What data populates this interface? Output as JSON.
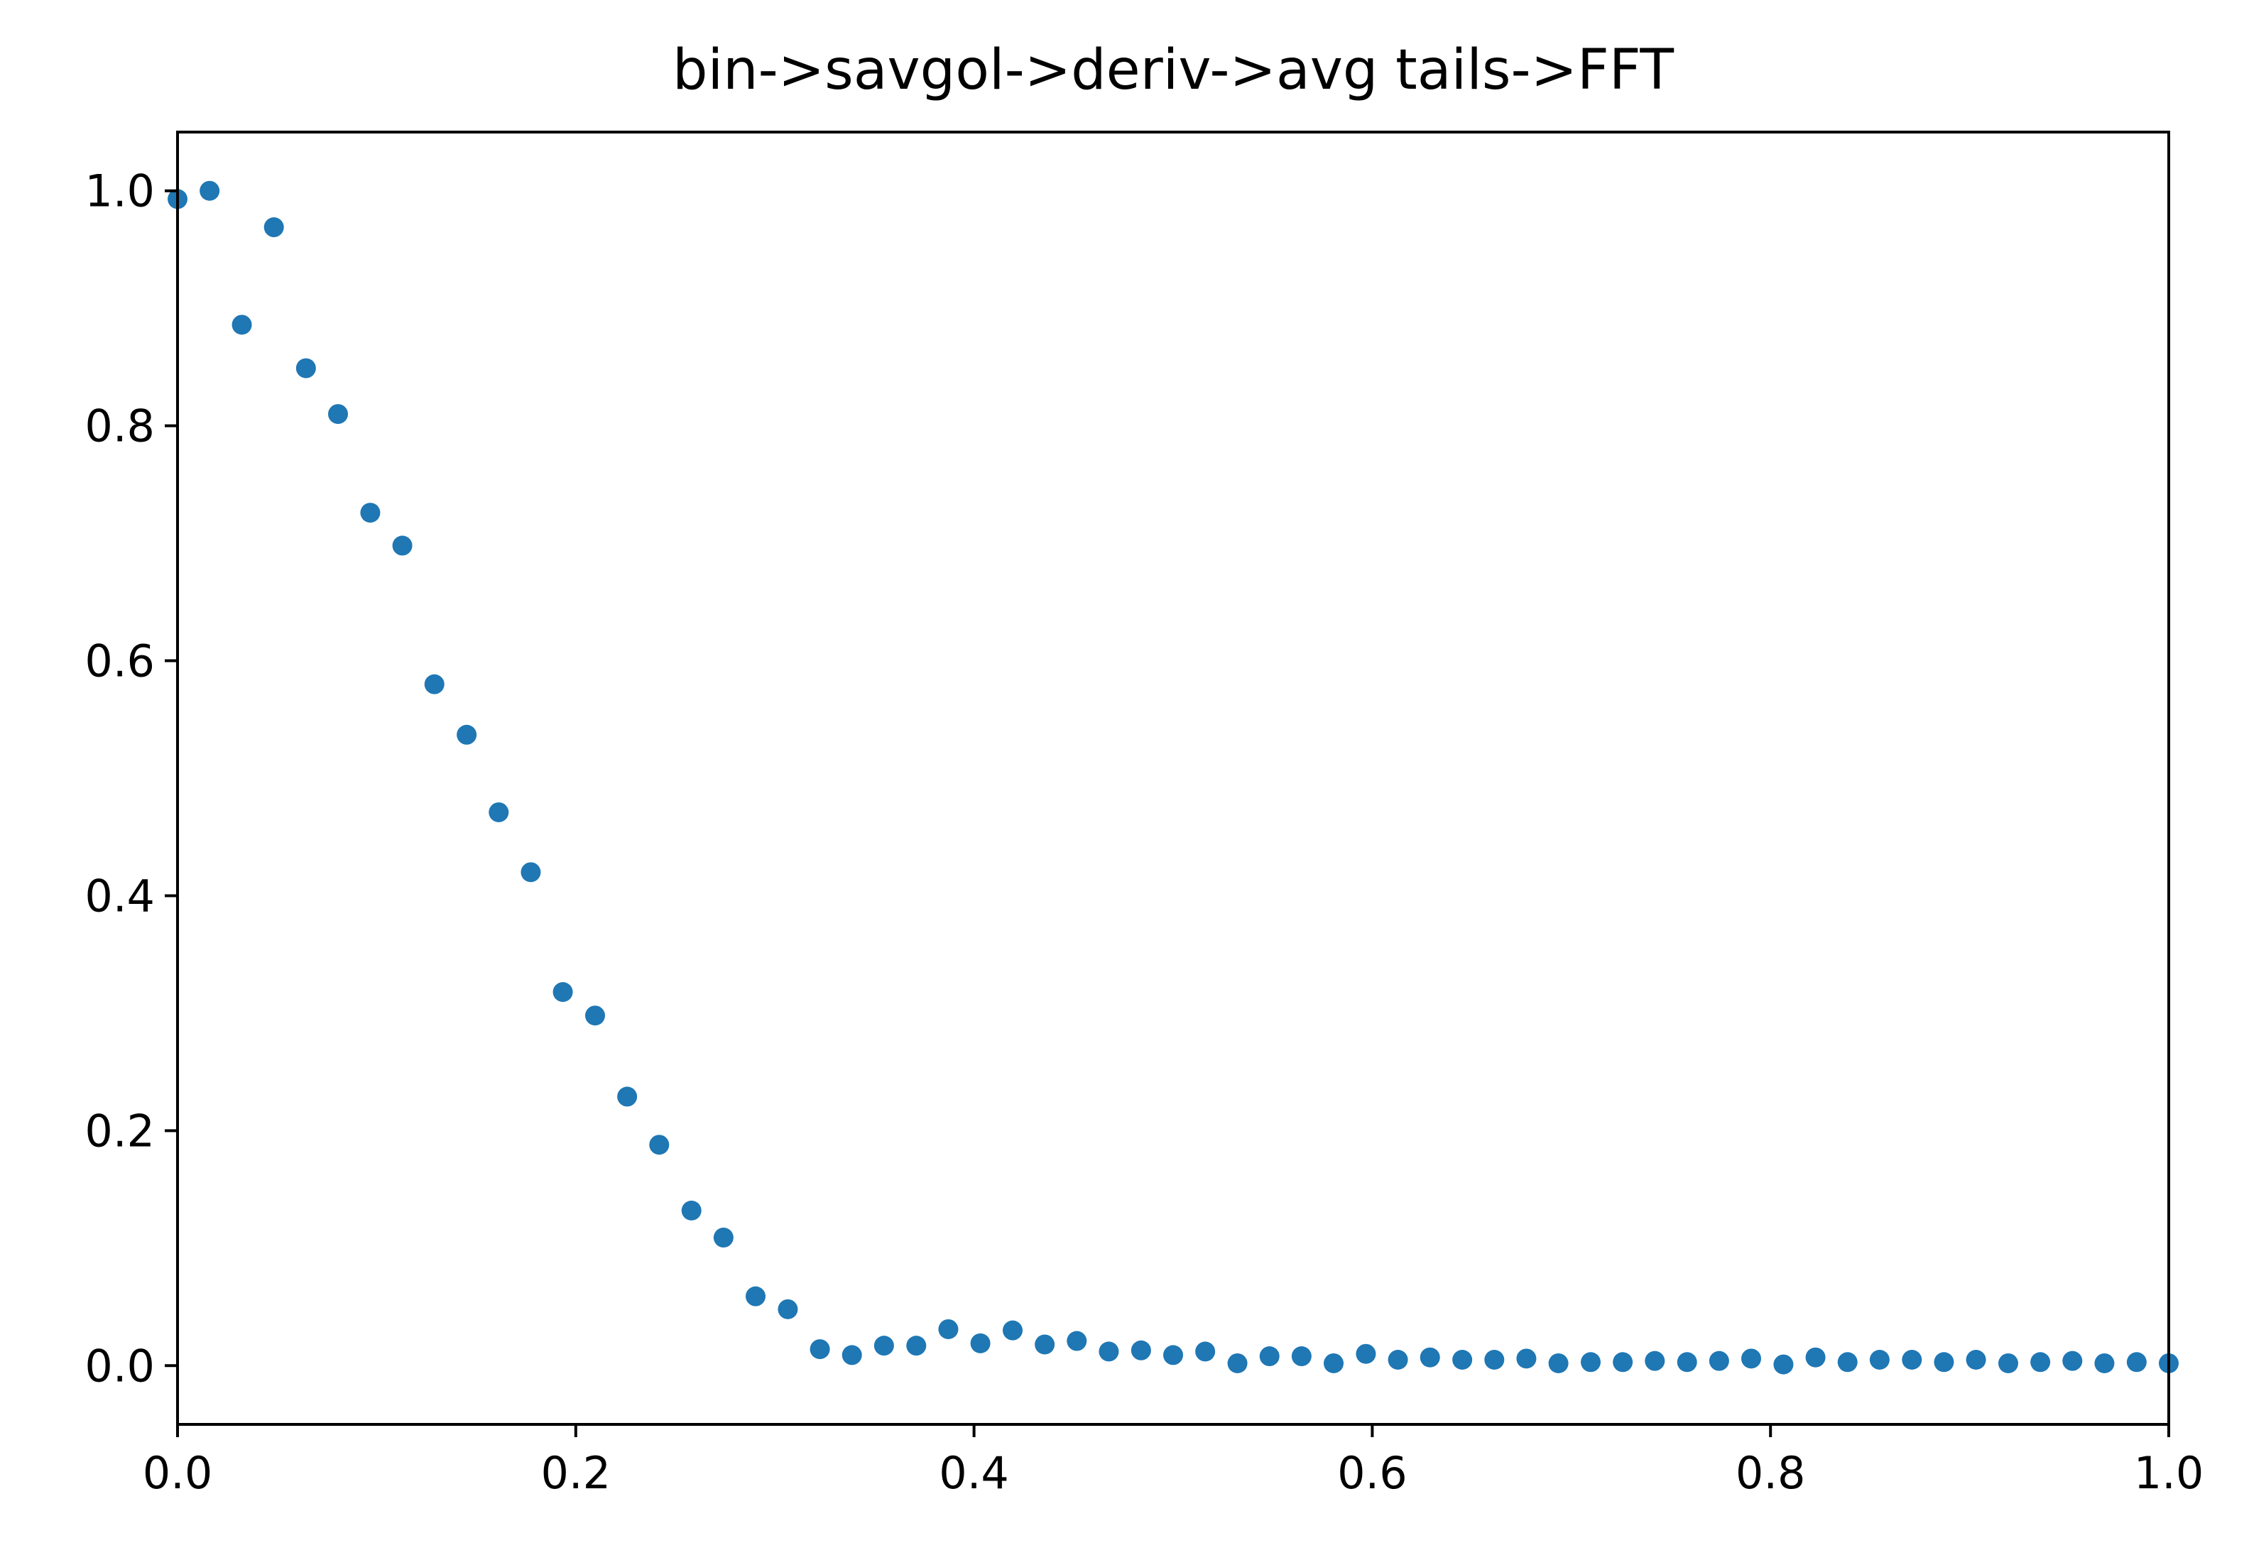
{
  "chart_data": {
    "type": "scatter",
    "title": "bin->savgol->deriv->avg tails->FFT",
    "xlabel": "",
    "ylabel": "",
    "xlim": [
      0.0,
      1.0
    ],
    "ylim": [
      -0.05,
      1.05
    ],
    "grid": false,
    "x_ticks": [
      "0.0",
      "0.2",
      "0.4",
      "0.6",
      "0.8",
      "1.0"
    ],
    "y_ticks": [
      "0.0",
      "0.2",
      "0.4",
      "0.6",
      "0.8",
      "1.0"
    ],
    "series": [
      {
        "color": "#1f77b4",
        "x": [
          0.0,
          0.0161,
          0.0323,
          0.0484,
          0.0645,
          0.0806,
          0.0968,
          0.1129,
          0.129,
          0.1452,
          0.1613,
          0.1774,
          0.1935,
          0.2097,
          0.2258,
          0.2419,
          0.2581,
          0.2742,
          0.2903,
          0.3065,
          0.3226,
          0.3387,
          0.3548,
          0.371,
          0.3871,
          0.4032,
          0.4194,
          0.4355,
          0.4516,
          0.4677,
          0.4839,
          0.5,
          0.5161,
          0.5323,
          0.5484,
          0.5645,
          0.5806,
          0.5968,
          0.6129,
          0.629,
          0.6452,
          0.6613,
          0.6774,
          0.6935,
          0.7097,
          0.7258,
          0.7419,
          0.7581,
          0.7742,
          0.7903,
          0.8065,
          0.8226,
          0.8387,
          0.8548,
          0.871,
          0.8871,
          0.9032,
          0.9194,
          0.9355,
          0.9516,
          0.9677,
          0.9839,
          1.0
        ],
        "y": [
          0.993,
          1.0,
          0.886,
          0.969,
          0.849,
          0.81,
          0.726,
          0.698,
          0.58,
          0.537,
          0.471,
          0.42,
          0.318,
          0.298,
          0.229,
          0.188,
          0.132,
          0.109,
          0.059,
          0.048,
          0.014,
          0.009,
          0.017,
          0.017,
          0.031,
          0.019,
          0.03,
          0.018,
          0.021,
          0.012,
          0.013,
          0.009,
          0.012,
          0.002,
          0.008,
          0.008,
          0.002,
          0.01,
          0.005,
          0.007,
          0.005,
          0.005,
          0.006,
          0.002,
          0.003,
          0.003,
          0.004,
          0.003,
          0.004,
          0.006,
          0.001,
          0.007,
          0.003,
          0.005,
          0.005,
          0.003,
          0.005,
          0.002,
          0.003,
          0.004,
          0.002,
          0.003,
          0.002
        ]
      }
    ]
  }
}
